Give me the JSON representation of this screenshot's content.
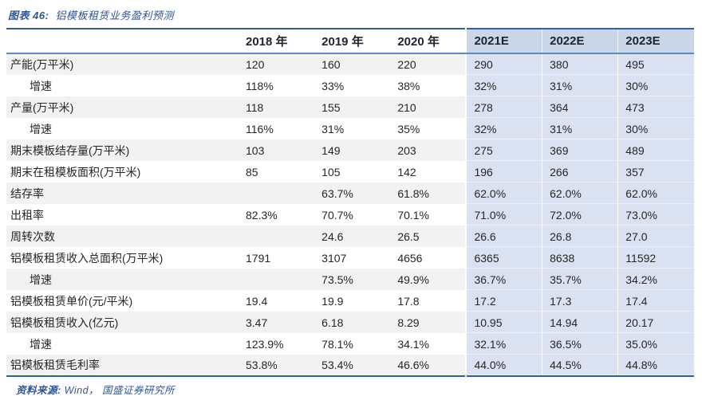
{
  "title": {
    "prefix": "图表 46:",
    "text": "铝模板租赁业务盈利预测"
  },
  "footer": {
    "prefix": "资料来源:",
    "text": "Wind， 国盛证券研究所"
  },
  "colors": {
    "accent_blue_line": "#2e5f9e",
    "header_underline": "#5b8ac5",
    "estimate_header_bg": "#ccd6e9",
    "estimate_body_bg": "#dae2f1",
    "stripe_gray": "#f2f2f2",
    "title_blue": "#2f5496"
  },
  "table": {
    "columns": [
      "",
      "2018 年",
      "2019 年",
      "2020 年",
      "2021E",
      "2022E",
      "2023E"
    ],
    "estimate_column_start_index": 4,
    "rows": [
      {
        "label": "产能(万平米)",
        "indent": false,
        "values": [
          "120",
          "160",
          "220",
          "290",
          "380",
          "495"
        ]
      },
      {
        "label": "增速",
        "indent": true,
        "values": [
          "118%",
          "33%",
          "38%",
          "32%",
          "31%",
          "30%"
        ]
      },
      {
        "label": "产量(万平米)",
        "indent": false,
        "values": [
          "118",
          "155",
          "210",
          "278",
          "364",
          "473"
        ]
      },
      {
        "label": "增速",
        "indent": true,
        "values": [
          "116%",
          "31%",
          "35%",
          "32%",
          "31%",
          "30%"
        ]
      },
      {
        "label": "期末模板结存量(万平米)",
        "indent": false,
        "values": [
          "103",
          "149",
          "203",
          "275",
          "369",
          "489"
        ]
      },
      {
        "label": "期末在租模板面积(万平米)",
        "indent": false,
        "values": [
          "85",
          "105",
          "142",
          "196",
          "266",
          "357"
        ]
      },
      {
        "label": "结存率",
        "indent": false,
        "values": [
          "",
          "63.7%",
          "61.8%",
          "62.0%",
          "62.0%",
          "62.0%"
        ]
      },
      {
        "label": "出租率",
        "indent": false,
        "values": [
          "82.3%",
          "70.7%",
          "70.1%",
          "71.0%",
          "72.0%",
          "73.0%"
        ]
      },
      {
        "label": "周转次数",
        "indent": false,
        "values": [
          "",
          "24.6",
          "26.5",
          "26.6",
          "26.8",
          "27.0"
        ]
      },
      {
        "label": "铝模板租赁收入总面积(万平米)",
        "indent": false,
        "values": [
          "1791",
          "3107",
          "4656",
          "6365",
          "8638",
          "11592"
        ]
      },
      {
        "label": "增速",
        "indent": true,
        "values": [
          "",
          "73.5%",
          "49.9%",
          "36.7%",
          "35.7%",
          "34.2%"
        ]
      },
      {
        "label": "铝模板租赁单价(元/平米)",
        "indent": false,
        "values": [
          "19.4",
          "19.9",
          "17.8",
          "17.2",
          "17.3",
          "17.4"
        ]
      },
      {
        "label": "铝模板租赁收入(亿元)",
        "indent": false,
        "values": [
          "3.47",
          "6.18",
          "8.29",
          "10.95",
          "14.94",
          "20.17"
        ]
      },
      {
        "label": "增速",
        "indent": true,
        "values": [
          "123.9%",
          "78.1%",
          "34.1%",
          "32.1%",
          "36.5%",
          "35.0%"
        ]
      },
      {
        "label": "铝模板租赁毛利率",
        "indent": false,
        "values": [
          "53.8%",
          "53.4%",
          "46.6%",
          "44.0%",
          "44.5%",
          "44.8%"
        ]
      }
    ]
  }
}
